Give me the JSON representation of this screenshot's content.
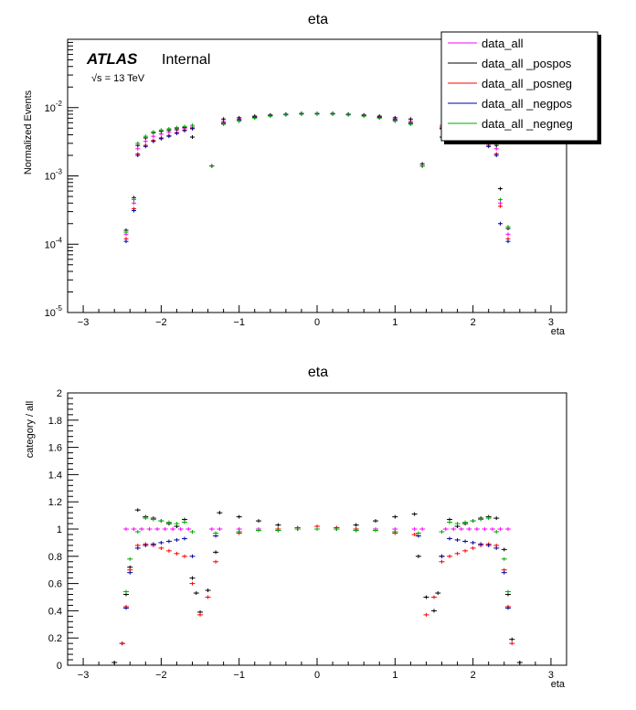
{
  "chart_data": [
    {
      "type": "scatter",
      "title": "eta",
      "xlabel": "eta",
      "ylabel": "Normalized Events",
      "yscale": "log",
      "xlim": [
        -3.2,
        3.2
      ],
      "ylim": [
        1e-05,
        0.1
      ],
      "xticks": [
        "−3",
        "−2",
        "−1",
        "0",
        "1",
        "2",
        "3"
      ],
      "yticks": [
        "10 -5",
        "10 -4",
        "10 -3",
        "10 -2"
      ],
      "annotation": {
        "brand": "ATLAS",
        "status": "Internal",
        "energy": "√s = 13 TeV"
      },
      "legend_position": "top-right",
      "legend": [
        {
          "name": "data_all",
          "color": "#ff00ff"
        },
        {
          "name": "data_all _pospos",
          "color": "#000000"
        },
        {
          "name": "data_all _posneg",
          "color": "#ff0000"
        },
        {
          "name": "data_all _negpos",
          "color": "#000099"
        },
        {
          "name": "data_all _negneg",
          "color": "#00aa00"
        }
      ],
      "series": [
        {
          "name": "data_all",
          "color": "#ff00ff",
          "x": [
            -2.45,
            -2.35,
            -2.3,
            -2.2,
            -2.1,
            -2.0,
            -1.9,
            -1.8,
            -1.7,
            -1.6,
            -1.35,
            -1.2,
            -1.0,
            -0.8,
            -0.6,
            -0.4,
            -0.2,
            0,
            0.2,
            0.4,
            0.6,
            0.8,
            1.0,
            1.2,
            1.35,
            1.6,
            1.7,
            1.8,
            1.9,
            2.0,
            2.1,
            2.2,
            2.3,
            2.35,
            2.45
          ],
          "y": [
            0.00014,
            0.0004,
            0.0025,
            0.0032,
            0.0038,
            0.0041,
            0.0044,
            0.0047,
            0.005,
            0.0052,
            0.0014,
            0.0063,
            0.0068,
            0.0073,
            0.0077,
            0.0079,
            0.008,
            0.0081,
            0.008,
            0.0079,
            0.0077,
            0.0073,
            0.0068,
            0.0063,
            0.0014,
            0.0052,
            0.005,
            0.0047,
            0.0044,
            0.0041,
            0.0038,
            0.0032,
            0.0025,
            0.0004,
            0.00014
          ]
        },
        {
          "name": "data_all _pospos",
          "color": "#000000",
          "x": [
            -2.45,
            -2.35,
            -2.3,
            -2.2,
            -2.1,
            -2.0,
            -1.9,
            -1.8,
            -1.7,
            -1.6,
            -1.35,
            -1.2,
            -1.0,
            -0.8,
            -0.6,
            -0.4,
            -0.2,
            0,
            0.2,
            0.4,
            0.6,
            0.8,
            1.0,
            1.2,
            1.35,
            1.6,
            1.7,
            1.8,
            1.9,
            2.0,
            2.1,
            2.2,
            2.3,
            2.35,
            2.45
          ],
          "y": [
            0.00016,
            0.00048,
            0.0028,
            0.0036,
            0.0043,
            0.0045,
            0.0047,
            0.0049,
            0.0051,
            0.0037,
            0.0014,
            0.0068,
            0.0071,
            0.0075,
            0.0078,
            0.008,
            0.0081,
            0.008,
            0.0081,
            0.008,
            0.0078,
            0.0075,
            0.0071,
            0.0068,
            0.0015,
            0.0037,
            0.0051,
            0.0049,
            0.0047,
            0.0045,
            0.0043,
            0.0036,
            0.0028,
            0.00065,
            0.00017
          ]
        },
        {
          "name": "data_all _posneg",
          "color": "#ff0000",
          "x": [
            -2.45,
            -2.35,
            -2.3,
            -2.2,
            -2.1,
            -2.0,
            -1.9,
            -1.8,
            -1.7,
            -1.6,
            -1.35,
            -1.2,
            -1.0,
            -0.8,
            -0.6,
            -0.4,
            -0.2,
            0,
            0.2,
            0.4,
            0.6,
            0.8,
            1.0,
            1.2,
            1.35,
            1.6,
            1.7,
            1.8,
            1.9,
            2.0,
            2.1,
            2.2,
            2.3,
            2.35,
            2.45
          ],
          "y": [
            0.00012,
            0.00033,
            0.0021,
            0.0028,
            0.0033,
            0.0036,
            0.0039,
            0.0043,
            0.0047,
            0.005,
            0.0014,
            0.006,
            0.0066,
            0.0072,
            0.0077,
            0.008,
            0.0082,
            0.0082,
            0.0082,
            0.008,
            0.0077,
            0.0072,
            0.0066,
            0.006,
            0.0014,
            0.005,
            0.0047,
            0.0043,
            0.0039,
            0.0036,
            0.0033,
            0.0028,
            0.0021,
            0.00036,
            0.00012
          ]
        },
        {
          "name": "data_all _negpos",
          "color": "#000099",
          "x": [
            -2.45,
            -2.35,
            -2.3,
            -2.2,
            -2.1,
            -2.0,
            -1.9,
            -1.8,
            -1.7,
            -1.6,
            -1.35,
            -1.2,
            -1.0,
            -0.8,
            -0.6,
            -0.4,
            -0.2,
            0,
            0.2,
            0.4,
            0.6,
            0.8,
            1.0,
            1.2,
            1.35,
            1.6,
            1.7,
            1.8,
            1.9,
            2.0,
            2.1,
            2.2,
            2.3,
            2.35,
            2.45
          ],
          "y": [
            0.00011,
            0.00031,
            0.002,
            0.0027,
            0.0032,
            0.0035,
            0.0038,
            0.0042,
            0.0046,
            0.0049,
            0.0014,
            0.0059,
            0.0066,
            0.0072,
            0.0077,
            0.008,
            0.0082,
            0.0082,
            0.0082,
            0.008,
            0.0077,
            0.0072,
            0.0066,
            0.0059,
            0.0014,
            0.0049,
            0.0046,
            0.0042,
            0.0038,
            0.0035,
            0.0032,
            0.0027,
            0.002,
            0.0002,
            0.00011
          ]
        },
        {
          "name": "data_all _negneg",
          "color": "#00aa00",
          "x": [
            -2.45,
            -2.35,
            -2.3,
            -2.2,
            -2.1,
            -2.0,
            -1.9,
            -1.8,
            -1.7,
            -1.6,
            -1.35,
            -1.2,
            -1.0,
            -0.8,
            -0.6,
            -0.4,
            -0.2,
            0,
            0.2,
            0.4,
            0.6,
            0.8,
            1.0,
            1.2,
            1.35,
            1.6,
            1.7,
            1.8,
            1.9,
            2.0,
            2.1,
            2.2,
            2.3,
            2.35,
            2.45
          ],
          "y": [
            0.00015,
            0.00045,
            0.003,
            0.0038,
            0.0044,
            0.0047,
            0.0049,
            0.0051,
            0.0053,
            0.0055,
            0.0014,
            0.0057,
            0.0063,
            0.007,
            0.0075,
            0.0078,
            0.008,
            0.008,
            0.008,
            0.0078,
            0.0075,
            0.007,
            0.0063,
            0.0057,
            0.0014,
            0.0055,
            0.0053,
            0.0051,
            0.0049,
            0.0047,
            0.0044,
            0.0038,
            0.003,
            0.00045,
            0.00018
          ]
        }
      ]
    },
    {
      "type": "scatter",
      "title": "eta",
      "xlabel": "eta",
      "ylabel": "category / all",
      "xlim": [
        -3.2,
        3.2
      ],
      "ylim": [
        0,
        2
      ],
      "xticks": [
        "−3",
        "−2",
        "−1",
        "0",
        "1",
        "2",
        "3"
      ],
      "yticks": [
        "0",
        "0.2",
        "0.4",
        "0.6",
        "0.8",
        "1",
        "1.2",
        "1.4",
        "1.6",
        "1.8",
        "2"
      ],
      "series": [
        {
          "name": "data_all",
          "color": "#ff00ff",
          "x": [
            -2.45,
            -2.35,
            -2.25,
            -2.15,
            -2.05,
            -1.95,
            -1.85,
            -1.75,
            -1.65,
            -1.35,
            -1.25,
            -1.0,
            -0.75,
            -0.5,
            -0.25,
            0,
            0.25,
            0.5,
            0.75,
            1.0,
            1.25,
            1.35,
            1.65,
            1.75,
            1.85,
            1.95,
            2.05,
            2.15,
            2.25,
            2.35,
            2.45
          ],
          "y": [
            1,
            1,
            1,
            1,
            1,
            1,
            1,
            1,
            1,
            1,
            1,
            1,
            1,
            1,
            1,
            1,
            1,
            1,
            1,
            1,
            1,
            1,
            1,
            1,
            1,
            1,
            1,
            1,
            1,
            1,
            1
          ]
        },
        {
          "name": "data_all _pospos",
          "color": "#000000",
          "x": [
            -2.6,
            -2.5,
            -2.45,
            -2.4,
            -2.3,
            -2.2,
            -2.1,
            -2.0,
            -1.9,
            -1.8,
            -1.7,
            -1.6,
            -1.55,
            -1.5,
            -1.4,
            -1.3,
            -1.25,
            -1.0,
            -0.75,
            -0.5,
            -0.25,
            0,
            0.25,
            0.5,
            0.75,
            1.0,
            1.25,
            1.3,
            1.4,
            1.5,
            1.55,
            1.6,
            1.7,
            1.8,
            1.9,
            2.0,
            2.1,
            2.2,
            2.3,
            2.4,
            2.45,
            2.5,
            2.6
          ],
          "y": [
            0.02,
            0.16,
            0.52,
            0.72,
            1.14,
            1.09,
            1.08,
            1.06,
            1.04,
            1.02,
            1.07,
            0.64,
            0.53,
            0.39,
            0.55,
            0.83,
            1.12,
            1.09,
            1.06,
            1.03,
            1.01,
            1.0,
            1.01,
            1.03,
            1.06,
            1.09,
            1.11,
            0.8,
            0.5,
            0.4,
            0.53,
            0.8,
            1.07,
            1.02,
            1.04,
            1.06,
            1.08,
            1.09,
            1.08,
            0.85,
            0.52,
            0.19,
            0.02
          ]
        },
        {
          "name": "data_all _posneg",
          "color": "#ff0000",
          "x": [
            -2.5,
            -2.45,
            -2.4,
            -2.3,
            -2.2,
            -2.1,
            -2.0,
            -1.9,
            -1.8,
            -1.7,
            -1.6,
            -1.5,
            -1.4,
            -1.3,
            -1.0,
            -0.75,
            -0.5,
            -0.25,
            0,
            0.25,
            0.5,
            0.75,
            1.0,
            1.25,
            1.4,
            1.5,
            1.6,
            1.7,
            1.8,
            1.9,
            2.0,
            2.1,
            2.2,
            2.3,
            2.4,
            2.45,
            2.5
          ],
          "y": [
            0.16,
            0.43,
            0.7,
            0.88,
            0.89,
            0.88,
            0.86,
            0.84,
            0.82,
            0.8,
            0.6,
            0.37,
            0.5,
            0.76,
            0.97,
            0.99,
            1.0,
            1.01,
            1.02,
            1.01,
            1.0,
            0.99,
            0.97,
            0.96,
            0.37,
            0.5,
            0.76,
            0.8,
            0.82,
            0.84,
            0.86,
            0.88,
            0.89,
            0.88,
            0.7,
            0.43,
            0.16
          ]
        },
        {
          "name": "data_all _negpos",
          "color": "#000099",
          "x": [
            -2.45,
            -2.4,
            -2.3,
            -2.2,
            -2.1,
            -2.0,
            -1.9,
            -1.8,
            -1.7,
            -1.6,
            -1.3,
            -1.0,
            -0.75,
            -0.5,
            -0.25,
            0,
            0.25,
            0.5,
            0.75,
            1.0,
            1.3,
            1.6,
            1.7,
            1.8,
            1.9,
            2.0,
            2.1,
            2.2,
            2.3,
            2.4,
            2.45
          ],
          "y": [
            0.42,
            0.68,
            0.86,
            0.88,
            0.89,
            0.9,
            0.91,
            0.92,
            0.93,
            0.8,
            0.95,
            0.98,
            0.99,
            0.99,
            1.0,
            1.0,
            1.0,
            0.99,
            0.99,
            0.98,
            0.95,
            0.8,
            0.93,
            0.92,
            0.91,
            0.9,
            0.89,
            0.88,
            0.86,
            0.68,
            0.42
          ]
        },
        {
          "name": "data_all _negneg",
          "color": "#00aa00",
          "x": [
            -2.45,
            -2.4,
            -2.3,
            -2.2,
            -2.1,
            -2.0,
            -1.9,
            -1.8,
            -1.7,
            -1.6,
            -1.3,
            -1.0,
            -0.75,
            -0.5,
            -0.25,
            0,
            0.25,
            0.5,
            0.75,
            1.0,
            1.3,
            1.6,
            1.7,
            1.8,
            1.9,
            2.0,
            2.1,
            2.2,
            2.3,
            2.4,
            2.45
          ],
          "y": [
            0.54,
            0.78,
            0.98,
            1.08,
            1.07,
            1.06,
            1.05,
            1.04,
            1.05,
            0.98,
            0.97,
            0.98,
            0.99,
            0.99,
            1.0,
            1.0,
            1.0,
            0.99,
            0.99,
            0.98,
            0.97,
            0.98,
            1.05,
            1.04,
            1.05,
            1.06,
            1.07,
            1.08,
            0.98,
            0.78,
            0.54
          ]
        }
      ]
    }
  ]
}
